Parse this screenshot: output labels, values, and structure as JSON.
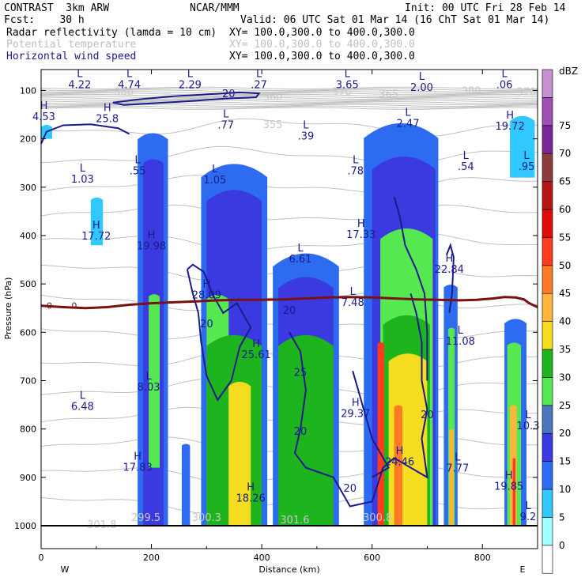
{
  "header": {
    "line1_left": "CONTRAST  3km ARW",
    "line1_mid": "NCAR/MMM",
    "line1_right": "Init: 00 UTC Fri 28 Feb 14",
    "line2_left": "Fcst:    30 h",
    "line2_right": "Valid: 06 UTC Sat 01 Mar 14 (16 ChT Sat 01 Mar 14)",
    "field1_name": "Radar reflectivity (lamda = 10 cm)",
    "field1_xy": "XY= 100.0,300.0 to 400.0,300.0",
    "field2_name": "Potential temperature",
    "field2_xy": "XY= 100.0,300.0 to 400.0,300.0",
    "field3_name": "Horizontal wind speed",
    "field3_xy": "XY= 100.0,300.0 to 400.0,300.0"
  },
  "colors": {
    "refl": [
      "#ffffff",
      "#a0ffff",
      "#30c8ff",
      "#2d6cf0",
      "#3a3ae0",
      "#4a76c0",
      "#55e850",
      "#1eb41e",
      "#f5dc1e",
      "#ffb43c",
      "#ff7a28",
      "#ff3c1e",
      "#e00a0a",
      "#b41414",
      "#8c3c3c",
      "#7a2898",
      "#a050b4",
      "#c890d2"
    ],
    "wind": "#1a1a8c",
    "theta": "#c0c0c0",
    "freezing": "#7a1010"
  },
  "chart_data": {
    "type": "heatmap",
    "xlabel": "Distance (km)",
    "ylabel": "Pressure (hPa)",
    "xlim": [
      0,
      900
    ],
    "ylim": [
      1000,
      60
    ],
    "xticks": [
      "0",
      "200",
      "400",
      "600",
      "800"
    ],
    "yticks": [
      "100",
      "200",
      "300",
      "400",
      "500",
      "600",
      "700",
      "800",
      "900",
      "1000"
    ],
    "west_label": "W",
    "east_label": "E",
    "colorbar_unit": "dBZ",
    "colorbar_levels": [
      "0",
      "5",
      "10",
      "15",
      "20",
      "25",
      "30",
      "35",
      "40",
      "45",
      "50",
      "55",
      "60",
      "65",
      "70",
      "75"
    ],
    "freezing_level_label": "0",
    "wind_maxima": [
      {
        "type": "H",
        "value": "4.53",
        "x": 5,
        "p": 158
      },
      {
        "type": "H",
        "value": "25.8",
        "x": 120,
        "p": 162
      },
      {
        "type": "H",
        "value": "17.72",
        "x": 100,
        "p": 405
      },
      {
        "type": "H",
        "value": "19.98",
        "x": 200,
        "p": 425
      },
      {
        "type": "H",
        "value": "28.09",
        "x": 300,
        "p": 527
      },
      {
        "type": "H",
        "value": "17.33",
        "x": 580,
        "p": 402
      },
      {
        "type": "H",
        "value": "22.84",
        "x": 740,
        "p": 474
      },
      {
        "type": "H",
        "value": "25.61",
        "x": 390,
        "p": 650
      },
      {
        "type": "H",
        "value": "29.37",
        "x": 570,
        "p": 772
      },
      {
        "type": "H",
        "value": "24.46",
        "x": 650,
        "p": 872
      },
      {
        "type": "H",
        "value": "17.83",
        "x": 175,
        "p": 883
      },
      {
        "type": "H",
        "value": "18.26",
        "x": 380,
        "p": 947
      },
      {
        "type": "H",
        "value": "19.72",
        "x": 850,
        "p": 178
      },
      {
        "type": "H",
        "value": "19.85",
        "x": 848,
        "p": 922
      },
      {
        "type": "L",
        "value": "4.22",
        "x": 70,
        "p": 92
      },
      {
        "type": "L",
        "value": "4.74",
        "x": 160,
        "p": 92
      },
      {
        "type": "L",
        "value": "2.29",
        "x": 270,
        "p": 92
      },
      {
        "type": "L",
        "value": ".27",
        "x": 395,
        "p": 92
      },
      {
        "type": "L",
        "value": "3.65",
        "x": 555,
        "p": 92
      },
      {
        "type": "L",
        "value": "2.00",
        "x": 690,
        "p": 98
      },
      {
        "type": "L",
        "value": ".06",
        "x": 840,
        "p": 92
      },
      {
        "type": "L",
        "value": ".77",
        "x": 335,
        "p": 175
      },
      {
        "type": "L",
        "value": ".39",
        "x": 480,
        "p": 198
      },
      {
        "type": "L",
        "value": "2.47",
        "x": 665,
        "p": 172
      },
      {
        "type": "L",
        "value": ".54",
        "x": 770,
        "p": 261
      },
      {
        "type": "L",
        "value": ".95",
        "x": 880,
        "p": 261
      },
      {
        "type": "L",
        "value": "1.03",
        "x": 75,
        "p": 287
      },
      {
        "type": "L",
        "value": ".55",
        "x": 175,
        "p": 270
      },
      {
        "type": "L",
        "value": "1.05",
        "x": 315,
        "p": 289
      },
      {
        "type": "L",
        "value": ".78",
        "x": 570,
        "p": 270
      },
      {
        "type": "L",
        "value": "6.61",
        "x": 470,
        "p": 452
      },
      {
        "type": "L",
        "value": "7.48",
        "x": 565,
        "p": 542
      },
      {
        "type": "L",
        "value": "11.08",
        "x": 760,
        "p": 622
      },
      {
        "type": "L",
        "value": "8.03",
        "x": 195,
        "p": 717
      },
      {
        "type": "L",
        "value": "6.48",
        "x": 75,
        "p": 757
      },
      {
        "type": "L",
        "value": "10.3",
        "x": 885,
        "p": 797
      },
      {
        "type": "L",
        "value": "7.77",
        "x": 755,
        "p": 885
      },
      {
        "type": "L",
        "value": "9.2",
        "x": 885,
        "p": 985
      }
    ],
    "wind_contour_labels": [
      {
        "value": "20",
        "x": 340,
        "p": 114
      },
      {
        "value": "20",
        "x": 300,
        "p": 590
      },
      {
        "value": "20",
        "x": 450,
        "p": 562
      },
      {
        "value": "25",
        "x": 470,
        "p": 690
      },
      {
        "value": "20",
        "x": 470,
        "p": 812
      },
      {
        "value": "20",
        "x": 560,
        "p": 930
      },
      {
        "value": "20",
        "x": 700,
        "p": 778
      }
    ],
    "theta_labels": [
      {
        "value": "380",
        "x": 150,
        "p": 110
      },
      {
        "value": "360",
        "x": 420,
        "p": 120
      },
      {
        "value": "370",
        "x": 545,
        "p": 110
      },
      {
        "value": "365",
        "x": 630,
        "p": 115
      },
      {
        "value": "380",
        "x": 780,
        "p": 108
      },
      {
        "value": "370",
        "x": 880,
        "p": 110
      },
      {
        "value": "355",
        "x": 420,
        "p": 178
      },
      {
        "value": "301.8",
        "x": 110,
        "p": 1005
      },
      {
        "value": "299.5",
        "x": 190,
        "p": 990
      },
      {
        "value": "300.3",
        "x": 300,
        "p": 990
      },
      {
        "value": "301.6",
        "x": 460,
        "p": 995
      },
      {
        "value": "300.8",
        "x": 610,
        "p": 990
      }
    ],
    "freezing_level_p": [
      545,
      548,
      550,
      548,
      543,
      540,
      538,
      536,
      534,
      533,
      533,
      532,
      530,
      528,
      527,
      528,
      530,
      532,
      533,
      534,
      533,
      530,
      527,
      528,
      532,
      540,
      548
    ],
    "freezing_level_x": [
      0,
      40,
      80,
      120,
      160,
      200,
      240,
      280,
      320,
      360,
      400,
      440,
      480,
      520,
      560,
      600,
      640,
      680,
      720,
      760,
      790,
      820,
      840,
      860,
      875,
      885,
      900
    ],
    "reflectivity_columns": [
      {
        "x0": 90,
        "x1": 112,
        "ptop": 320,
        "pbot": 420,
        "dbz": 5
      },
      {
        "x0": 175,
        "x1": 230,
        "ptop": 185,
        "pbot": 1000,
        "dbz": 10
      },
      {
        "x0": 185,
        "x1": 222,
        "ptop": 240,
        "pbot": 1000,
        "dbz": 15
      },
      {
        "x0": 195,
        "x1": 215,
        "ptop": 520,
        "pbot": 880,
        "dbz": 25
      },
      {
        "x0": 255,
        "x1": 270,
        "ptop": 830,
        "pbot": 1000,
        "dbz": 10
      },
      {
        "x0": 290,
        "x1": 410,
        "ptop": 245,
        "pbot": 1000,
        "dbz": 10
      },
      {
        "x0": 300,
        "x1": 400,
        "ptop": 300,
        "pbot": 1000,
        "dbz": 15
      },
      {
        "x0": 300,
        "x1": 340,
        "ptop": 520,
        "pbot": 1000,
        "dbz": 25
      },
      {
        "x0": 300,
        "x1": 400,
        "ptop": 600,
        "pbot": 1000,
        "dbz": 30
      },
      {
        "x0": 340,
        "x1": 380,
        "ptop": 700,
        "pbot": 1000,
        "dbz": 35
      },
      {
        "x0": 420,
        "x1": 540,
        "ptop": 430,
        "pbot": 1000,
        "dbz": 10
      },
      {
        "x0": 430,
        "x1": 530,
        "ptop": 480,
        "pbot": 1000,
        "dbz": 15
      },
      {
        "x0": 430,
        "x1": 530,
        "ptop": 600,
        "pbot": 1000,
        "dbz": 30
      },
      {
        "x0": 585,
        "x1": 720,
        "ptop": 160,
        "pbot": 1000,
        "dbz": 10
      },
      {
        "x0": 600,
        "x1": 715,
        "ptop": 230,
        "pbot": 1000,
        "dbz": 15
      },
      {
        "x0": 615,
        "x1": 710,
        "ptop": 380,
        "pbot": 1000,
        "dbz": 25
      },
      {
        "x0": 620,
        "x1": 705,
        "ptop": 560,
        "pbot": 1000,
        "dbz": 30
      },
      {
        "x0": 630,
        "x1": 700,
        "ptop": 640,
        "pbot": 1000,
        "dbz": 35
      },
      {
        "x0": 640,
        "x1": 655,
        "ptop": 750,
        "pbot": 1000,
        "dbz": 45
      },
      {
        "x0": 610,
        "x1": 622,
        "ptop": 620,
        "pbot": 1000,
        "dbz": 50
      },
      {
        "x0": 730,
        "x1": 755,
        "ptop": 500,
        "pbot": 1000,
        "dbz": 10
      },
      {
        "x0": 738,
        "x1": 750,
        "ptop": 590,
        "pbot": 1000,
        "dbz": 25
      },
      {
        "x0": 740,
        "x1": 748,
        "ptop": 800,
        "pbot": 1000,
        "dbz": 40
      },
      {
        "x0": 840,
        "x1": 880,
        "ptop": 570,
        "pbot": 1000,
        "dbz": 10
      },
      {
        "x0": 845,
        "x1": 870,
        "ptop": 620,
        "pbot": 1000,
        "dbz": 25
      },
      {
        "x0": 850,
        "x1": 862,
        "ptop": 750,
        "pbot": 1000,
        "dbz": 40
      },
      {
        "x0": 855,
        "x1": 860,
        "ptop": 860,
        "pbot": 1000,
        "dbz": 50
      },
      {
        "x0": 850,
        "x1": 895,
        "ptop": 150,
        "pbot": 280,
        "dbz": 5
      },
      {
        "x0": 0,
        "x1": 20,
        "ptop": 170,
        "pbot": 200,
        "dbz": 5
      }
    ]
  }
}
